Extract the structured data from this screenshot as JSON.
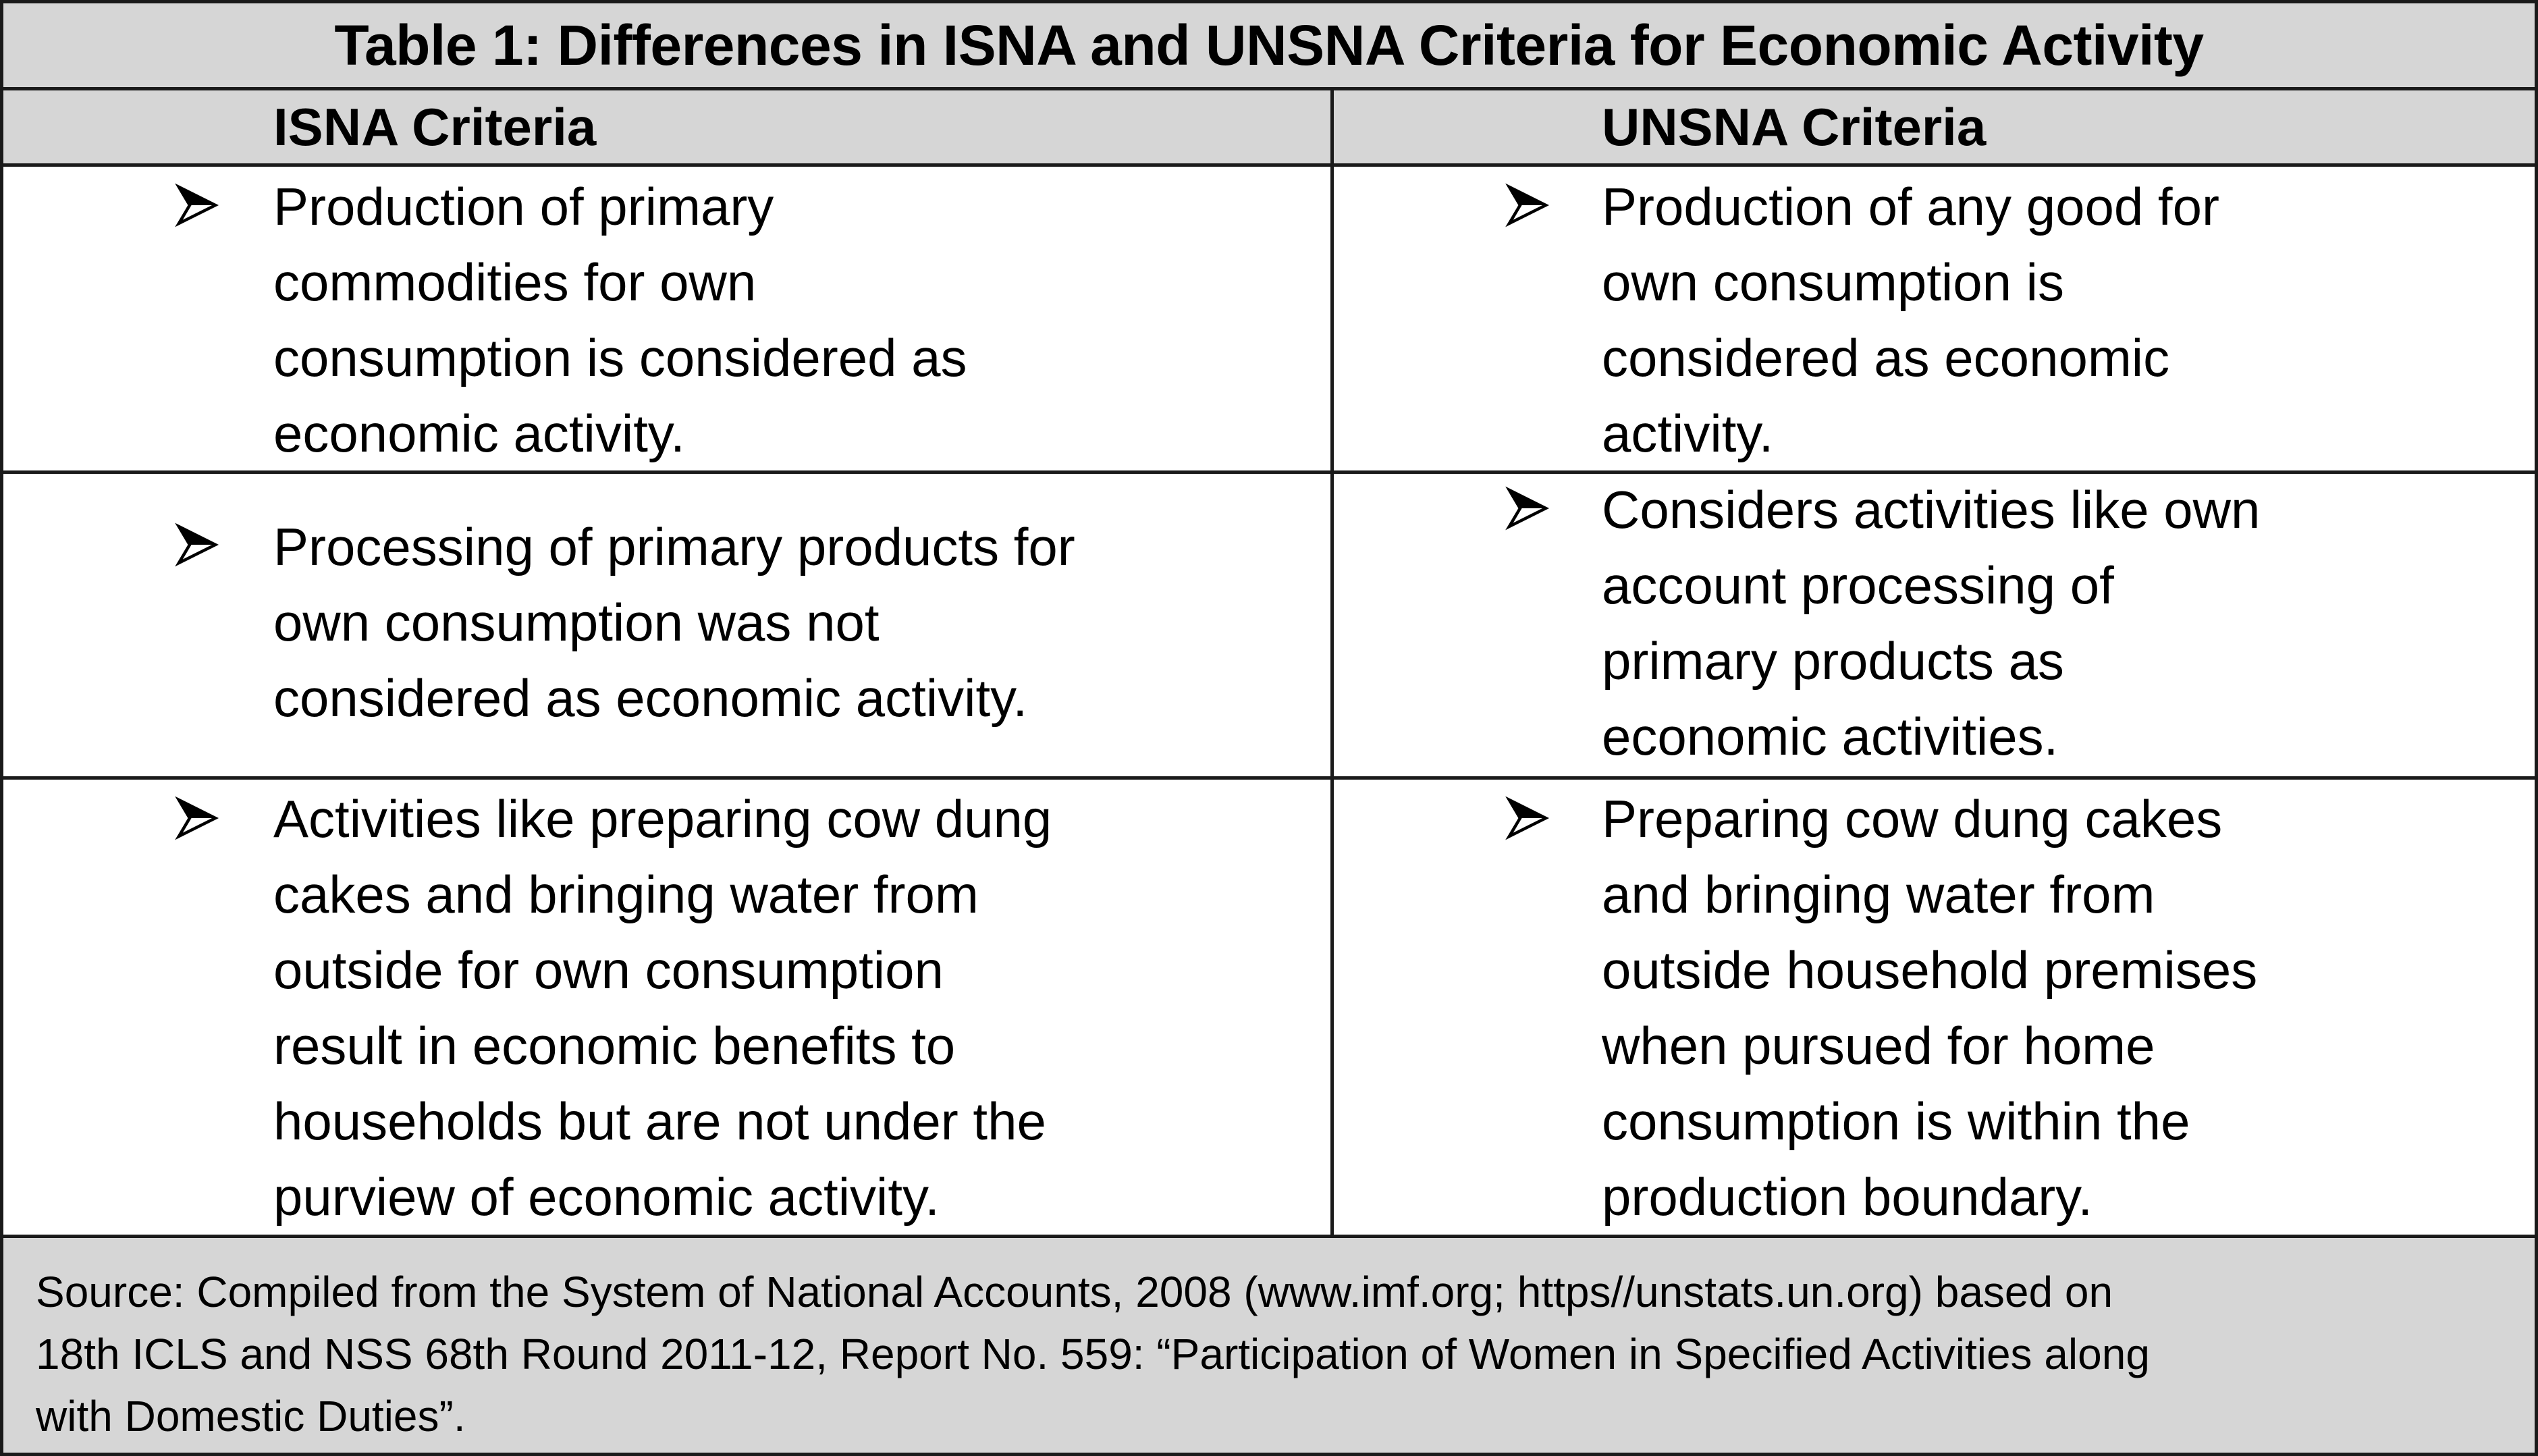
{
  "table": {
    "title": "Table 1: Differences in ISNA and UNSNA Criteria for Economic Activity",
    "headers": {
      "left": "ISNA Criteria",
      "right": "UNSNA Criteria"
    },
    "bullet_icon": "arrowhead-bullet-icon",
    "rows": [
      {
        "isna": "Production of primary\ncommodities for own\nconsumption is considered as\neconomic activity.",
        "unsna": "Production of any good for\nown consumption is\nconsidered as economic\nactivity."
      },
      {
        "isna": "Processing of primary products for\nown consumption was not\nconsidered as economic activity.",
        "unsna": "Considers activities like own\naccount processing of\nprimary products as\neconomic activities."
      },
      {
        "isna": "Activities like preparing cow dung\ncakes and bringing water from\noutside for own consumption\nresult in economic benefits to\nhouseholds but are not under the\npurview of economic activity.",
        "unsna": "Preparing cow dung cakes\nand bringing water from\noutside household premises\nwhen pursued for home\nconsumption is within the\nproduction boundary."
      }
    ],
    "source": "Source: Compiled from the System of National Accounts, 2008 (www.imf.org; https//unstats.un.org) based on\n18th ICLS and NSS 68th Round 2011-12, Report No. 559: “Participation of Women in Specified Activities along\nwith Domestic Duties”."
  },
  "colors": {
    "header_fill": "#d6d6d6",
    "border": "#1a1a1a",
    "text": "#000000"
  }
}
